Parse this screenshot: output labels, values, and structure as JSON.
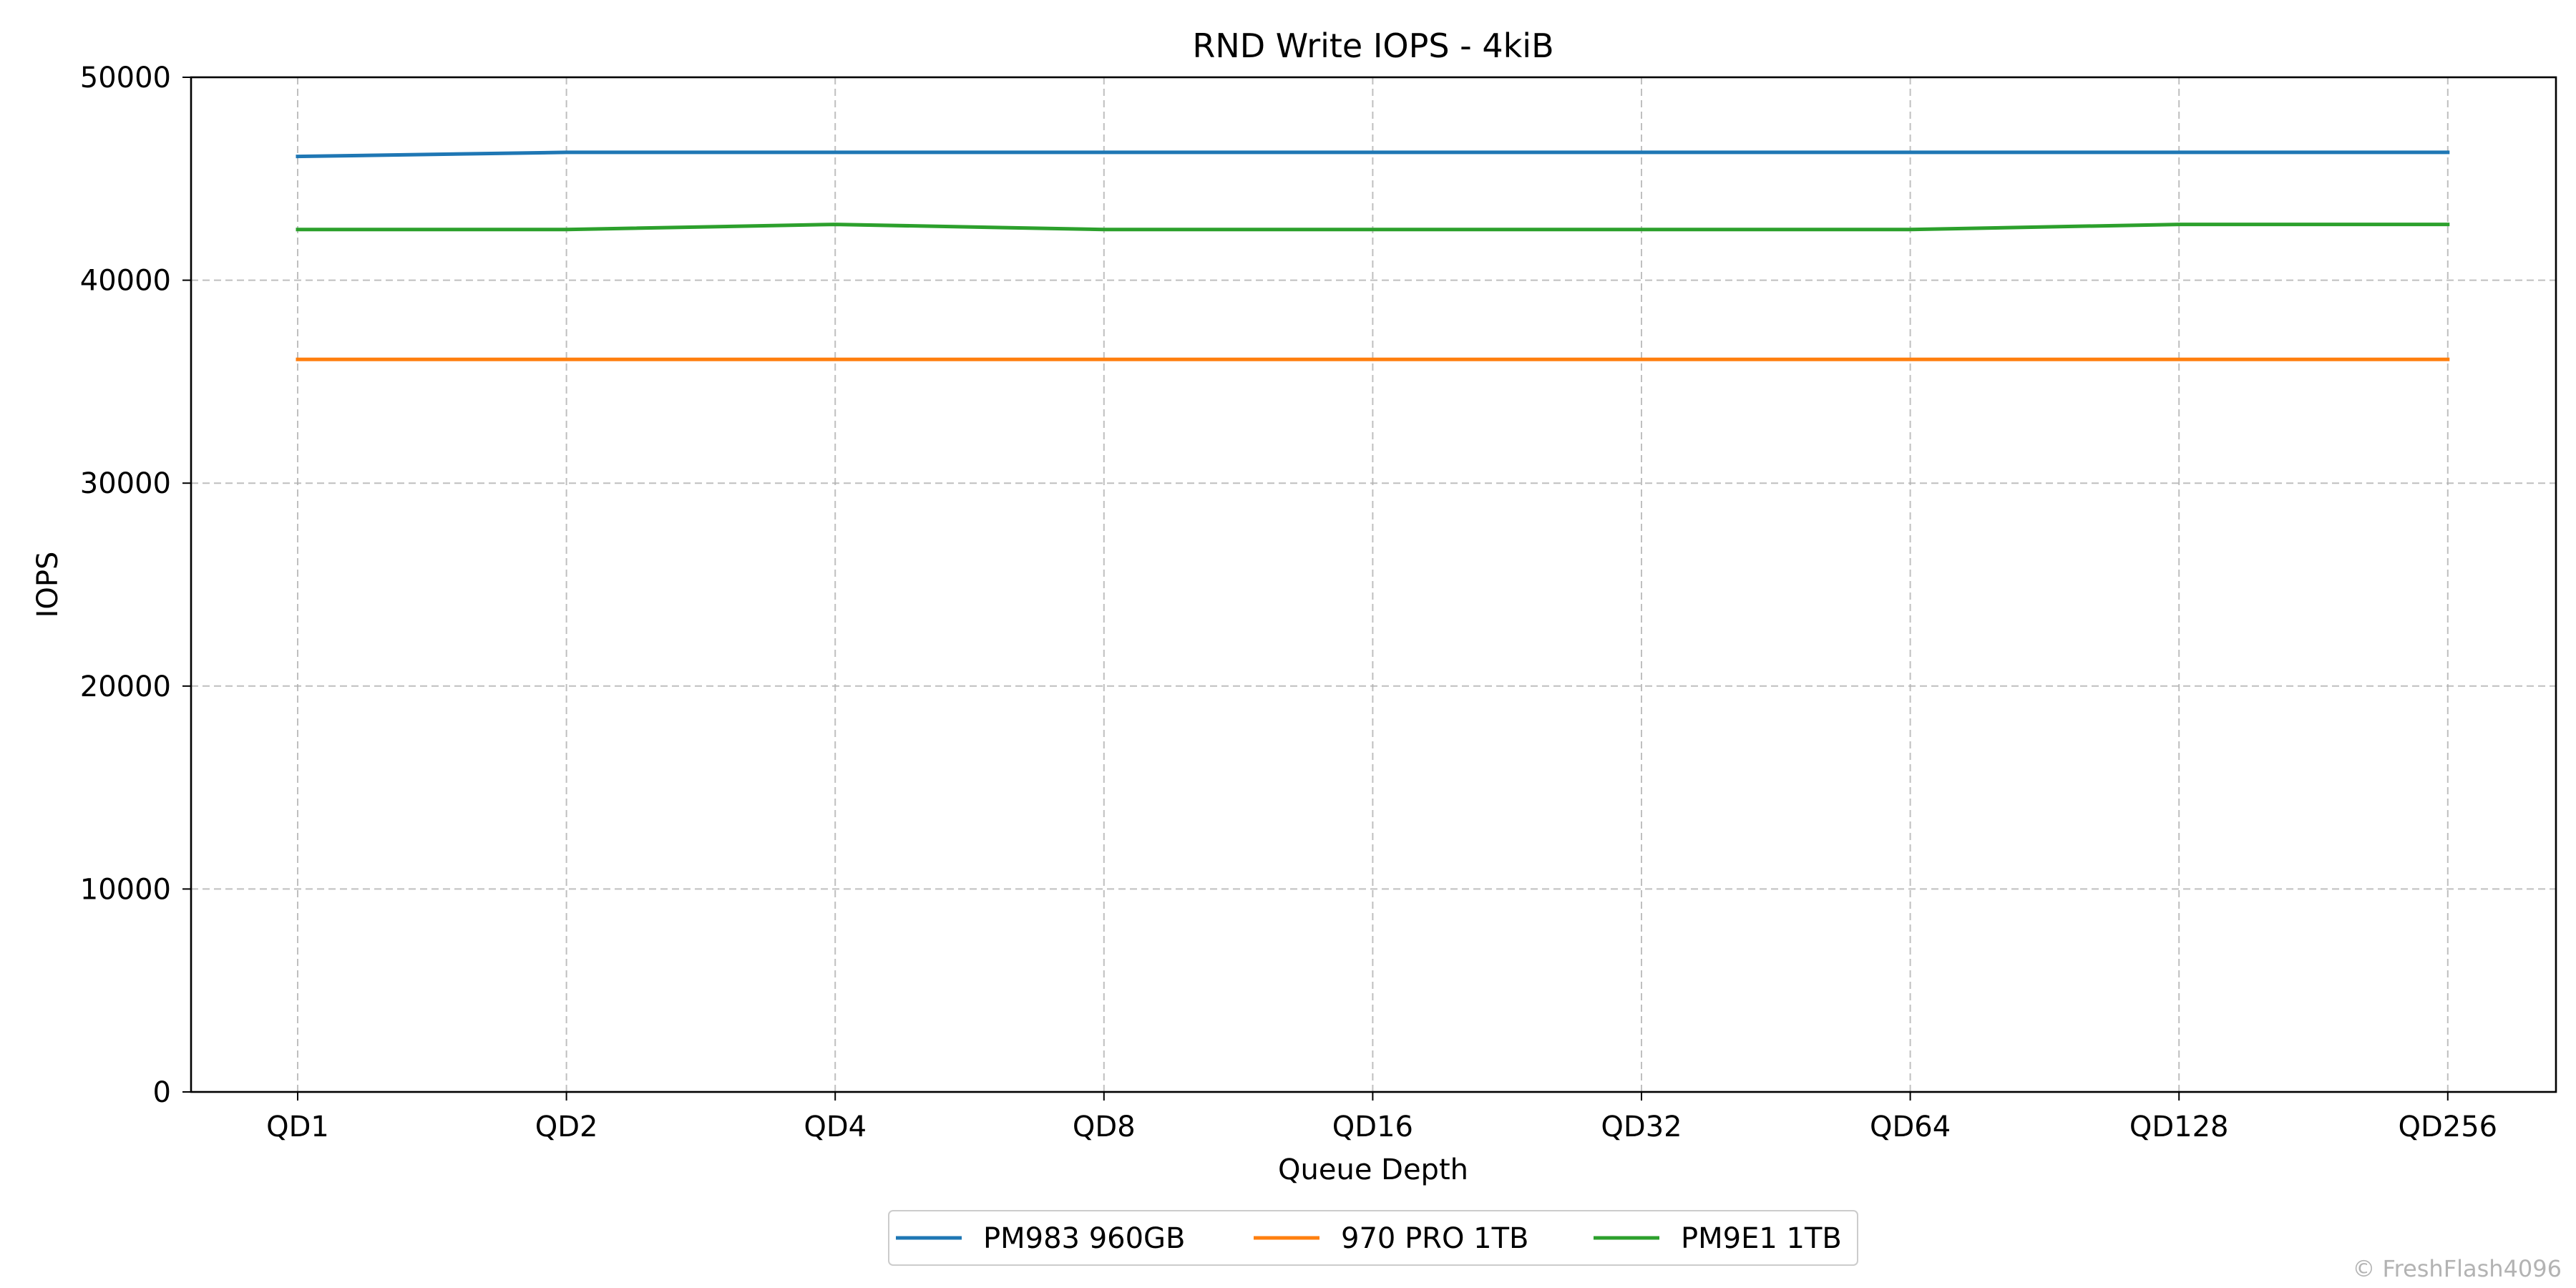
{
  "chart_data": {
    "type": "line",
    "title": "RND Write IOPS - 4kiB",
    "xlabel": "Queue Depth",
    "ylabel": "IOPS",
    "categories": [
      "QD1",
      "QD2",
      "QD4",
      "QD8",
      "QD16",
      "QD32",
      "QD64",
      "QD128",
      "QD256"
    ],
    "ylim": [
      0,
      50000
    ],
    "yticks": [
      0,
      10000,
      20000,
      30000,
      40000,
      50000
    ],
    "grid": true,
    "legend_position": "bottom-center",
    "series": [
      {
        "name": "PM983 960GB",
        "color": "#1f77b4",
        "values": [
          46100,
          46300,
          46300,
          46300,
          46300,
          46300,
          46300,
          46300,
          46300
        ]
      },
      {
        "name": "970 PRO 1TB",
        "color": "#ff7f0e",
        "values": [
          36100,
          36100,
          36100,
          36100,
          36100,
          36100,
          36100,
          36100,
          36100
        ]
      },
      {
        "name": "PM9E1 1TB",
        "color": "#2ca02c",
        "values": [
          42500,
          42500,
          42750,
          42500,
          42500,
          42500,
          42500,
          42750,
          42750
        ]
      }
    ]
  },
  "watermark": "© FreshFlash4096"
}
